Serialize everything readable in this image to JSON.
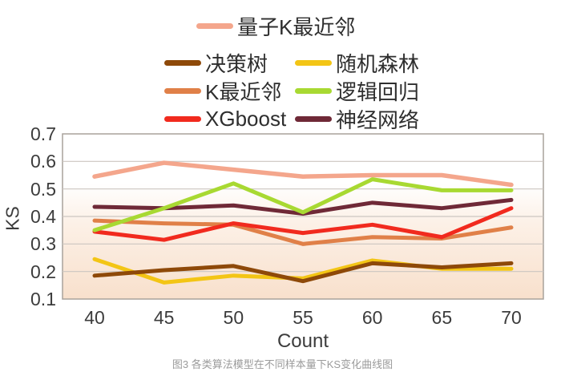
{
  "figure": {
    "caption": "图3 各类算法模型在不同样本量下KS变化曲线图"
  },
  "chart_data": {
    "type": "line",
    "x": [
      40,
      45,
      50,
      55,
      60,
      65,
      70
    ],
    "xlabel": "Count",
    "ylabel": "KS",
    "ylim": [
      0.1,
      0.7
    ],
    "yticks": [
      0.7,
      0.6,
      0.5,
      0.4,
      0.3,
      0.2,
      0.1
    ],
    "grid": true,
    "legend_position": "top-center",
    "plot_bg_top": "#FFFFFF",
    "plot_bg_bottom": "#F8E0CC",
    "gridline_color": "#CBC6C1",
    "border_color": "#A8A29B",
    "series": [
      {
        "name": "量子K最近邻",
        "color": "#F4A68C",
        "values": [
          0.545,
          0.595,
          0.57,
          0.545,
          0.55,
          0.55,
          0.515
        ]
      },
      {
        "name": "决策树",
        "color": "#8E4909",
        "values": [
          0.185,
          0.205,
          0.22,
          0.165,
          0.23,
          0.215,
          0.23
        ]
      },
      {
        "name": "随机森林",
        "color": "#F3C515",
        "values": [
          0.245,
          0.16,
          0.185,
          0.175,
          0.24,
          0.21,
          0.21
        ]
      },
      {
        "name": "K最近邻",
        "color": "#E08048",
        "values": [
          0.385,
          0.375,
          0.37,
          0.3,
          0.325,
          0.32,
          0.36
        ]
      },
      {
        "name": "逻辑回归",
        "color": "#A8D932",
        "values": [
          0.35,
          0.43,
          0.52,
          0.415,
          0.535,
          0.495,
          0.495
        ]
      },
      {
        "name": "XGboost",
        "color": "#F12A1E",
        "values": [
          0.345,
          0.315,
          0.375,
          0.34,
          0.37,
          0.325,
          0.43
        ]
      },
      {
        "name": "神经网络",
        "color": "#6F2937",
        "values": [
          0.435,
          0.43,
          0.44,
          0.41,
          0.45,
          0.43,
          0.46
        ]
      }
    ]
  }
}
